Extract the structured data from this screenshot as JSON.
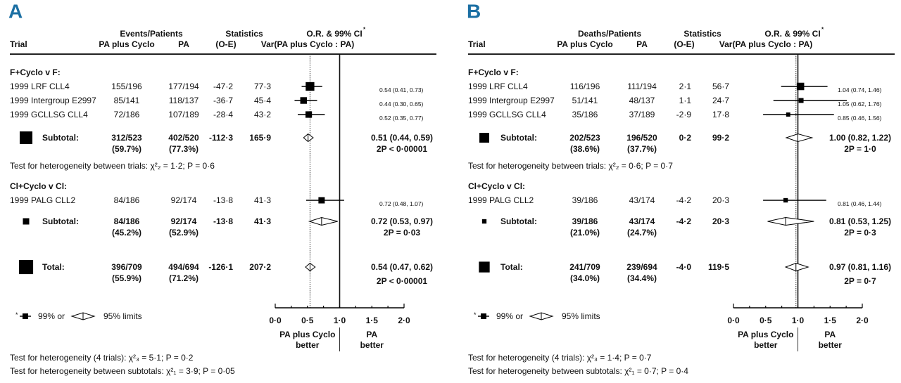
{
  "chart_data": [
    {
      "type": "forest",
      "panel_label": "A",
      "header": {
        "group_label": "Events/Patients",
        "stats_label": "Statistics",
        "or_label": "O.R. & 99% CI",
        "or_asterisk": "*",
        "trial": "Trial",
        "col_treat": "PA plus Cyclo",
        "col_ctrl": "PA",
        "col_oe": "(O-E)",
        "col_var": "Var(PA plus Cyclo : PA)"
      },
      "overall_or": 0.54,
      "rows": [
        {
          "kind": "group",
          "label": "F+Cyclo v F:"
        },
        {
          "kind": "trial",
          "label": "1999 LRF CLL4",
          "treat": "155/196",
          "ctrl": "177/194",
          "oe": "-47·2",
          "var": "77·3",
          "or": 0.54,
          "lo": 0.41,
          "hi": 0.73,
          "ci_text": "0.54 (0.41, 0.73)"
        },
        {
          "kind": "trial",
          "label": "1999 Intergroup E2997",
          "treat": "85/141",
          "ctrl": "118/137",
          "oe": "-36·7",
          "var": "45·4",
          "or": 0.44,
          "lo": 0.3,
          "hi": 0.65,
          "ci_text": "0.44 (0.30, 0.65)"
        },
        {
          "kind": "trial",
          "label": "1999 GCLLSG CLL4",
          "treat": "72/186",
          "ctrl": "107/189",
          "oe": "-28·4",
          "var": "43·2",
          "or": 0.52,
          "lo": 0.35,
          "hi": 0.77,
          "ci_text": "0.52 (0.35, 0.77)"
        },
        {
          "kind": "subtotal",
          "label": "Subtotal:",
          "treat": "312/523",
          "treat_pct": "(59.7%)",
          "ctrl": "402/520",
          "ctrl_pct": "(77.3%)",
          "oe": "-112·3",
          "var": "165·9",
          "or": 0.51,
          "lo": 0.44,
          "hi": 0.59,
          "ci_text": "0.51 (0.44, 0.59)",
          "p_text": "2P < 0·00001"
        },
        {
          "kind": "het",
          "label": "Test for heterogeneity between trials: χ²₂ = 1·2; P = 0·6"
        },
        {
          "kind": "group",
          "label": "Cl+Cyclo v Cl:"
        },
        {
          "kind": "trial",
          "label": "1999 PALG CLL2",
          "treat": "84/186",
          "ctrl": "92/174",
          "oe": "-13·8",
          "var": "41·3",
          "or": 0.72,
          "lo": 0.48,
          "hi": 1.07,
          "ci_text": "0.72 (0.48, 1.07)"
        },
        {
          "kind": "subtotal",
          "label": "Subtotal:",
          "treat": "84/186",
          "treat_pct": "(45.2%)",
          "ctrl": "92/174",
          "ctrl_pct": "(52.9%)",
          "oe": "-13·8",
          "var": "41·3",
          "or": 0.72,
          "lo": 0.53,
          "hi": 0.97,
          "ci_text": "0.72 (0.53, 0.97)",
          "p_text": "2P = 0·03"
        },
        {
          "kind": "total",
          "label": "Total:",
          "treat": "396/709",
          "treat_pct": "(55.9%)",
          "ctrl": "494/694",
          "ctrl_pct": "(71.2%)",
          "oe": "-126·1",
          "var": "207·2",
          "or": 0.54,
          "lo": 0.47,
          "hi": 0.62,
          "ci_text": "0.54 (0.47, 0.62)",
          "p_text": "2P < 0·00001"
        }
      ],
      "axis": {
        "ticks": [
          "0·0",
          "0·5",
          "1·0",
          "1·5",
          "2·0"
        ],
        "tick_values": [
          0,
          0.5,
          1,
          1.5,
          2
        ],
        "range": [
          0,
          2
        ]
      },
      "favours_left": [
        "PA plus Cyclo",
        "better"
      ],
      "favours_right": [
        "PA",
        "better"
      ],
      "legend": {
        "asterisk": "*",
        "ci99": "99% or",
        "ci95": "95% limits"
      },
      "footer": [
        "Test for heterogeneity (4 trials): χ²₃ = 5·1; P = 0·2",
        "Test for heterogeneity between subtotals: χ²₁ = 3·9; P = 0·05"
      ]
    },
    {
      "type": "forest",
      "panel_label": "B",
      "header": {
        "group_label": "Deaths/Patients",
        "stats_label": "Statistics",
        "or_label": "O.R. & 99% CI",
        "or_asterisk": "*",
        "trial": "Trial",
        "col_treat": "PA plus Cyclo",
        "col_ctrl": "PA",
        "col_oe": "(O-E)",
        "col_var": "Var(PA plus Cyclo : PA)"
      },
      "overall_or": 0.97,
      "rows": [
        {
          "kind": "group",
          "label": "F+Cyclo v F:"
        },
        {
          "kind": "trial",
          "label": "1999 LRF CLL4",
          "treat": "116/196",
          "ctrl": "111/194",
          "oe": "2·1",
          "var": "56·7",
          "or": 1.04,
          "lo": 0.74,
          "hi": 1.46,
          "ci_text": "1.04 (0.74, 1.46)"
        },
        {
          "kind": "trial",
          "label": "1999 Intergroup E2997",
          "treat": "51/141",
          "ctrl": "48/137",
          "oe": "1·1",
          "var": "24·7",
          "or": 1.05,
          "lo": 0.62,
          "hi": 1.76,
          "ci_text": "1.05 (0.62, 1.76)"
        },
        {
          "kind": "trial",
          "label": "1999 GCLLSG CLL4",
          "treat": "35/186",
          "ctrl": "37/189",
          "oe": "-2·9",
          "var": "17·8",
          "or": 0.85,
          "lo": 0.46,
          "hi": 1.56,
          "ci_text": "0.85 (0.46, 1.56)"
        },
        {
          "kind": "subtotal",
          "label": "Subtotal:",
          "treat": "202/523",
          "treat_pct": "(38.6%)",
          "ctrl": "196/520",
          "ctrl_pct": "(37.7%)",
          "oe": "0·2",
          "var": "99·2",
          "or": 1.0,
          "lo": 0.82,
          "hi": 1.22,
          "ci_text": "1.00 (0.82, 1.22)",
          "p_text": "2P = 1·0"
        },
        {
          "kind": "het",
          "label": "Test for heterogeneity between trials: χ²₂ = 0·6; P = 0·7"
        },
        {
          "kind": "group",
          "label": "Cl+Cyclo v Cl:"
        },
        {
          "kind": "trial",
          "label": "1999 PALG CLL2",
          "treat": "39/186",
          "ctrl": "43/174",
          "oe": "-4·2",
          "var": "20·3",
          "or": 0.81,
          "lo": 0.46,
          "hi": 1.44,
          "ci_text": "0.81 (0.46, 1.44)"
        },
        {
          "kind": "subtotal",
          "label": "Subtotal:",
          "treat": "39/186",
          "treat_pct": "(21.0%)",
          "ctrl": "43/174",
          "ctrl_pct": "(24.7%)",
          "oe": "-4·2",
          "var": "20·3",
          "or": 0.81,
          "lo": 0.53,
          "hi": 1.25,
          "ci_text": "0.81 (0.53, 1.25)",
          "p_text": "2P = 0·3"
        },
        {
          "kind": "total",
          "label": "Total:",
          "treat": "241/709",
          "treat_pct": "(34.0%)",
          "ctrl": "239/694",
          "ctrl_pct": "(34.4%)",
          "oe": "-4·0",
          "var": "119·5",
          "or": 0.97,
          "lo": 0.81,
          "hi": 1.16,
          "ci_text": "0.97 (0.81, 1.16)",
          "p_text": "2P = 0·7"
        }
      ],
      "axis": {
        "ticks": [
          "0·0",
          "0·5",
          "1·0",
          "1·5",
          "2·0"
        ],
        "tick_values": [
          0,
          0.5,
          1,
          1.5,
          2
        ],
        "range": [
          0,
          2
        ]
      },
      "favours_left": [
        "PA plus Cyclo",
        "better"
      ],
      "favours_right": [
        "PA",
        "better"
      ],
      "legend": {
        "asterisk": "*",
        "ci99": "99% or",
        "ci95": "95% limits"
      },
      "footer": [
        "Test for heterogeneity (4 trials): χ²₃ = 1·4; P = 0·7",
        "Test for heterogeneity between subtotals: χ²₁ = 0·7; P = 0·4"
      ]
    }
  ]
}
